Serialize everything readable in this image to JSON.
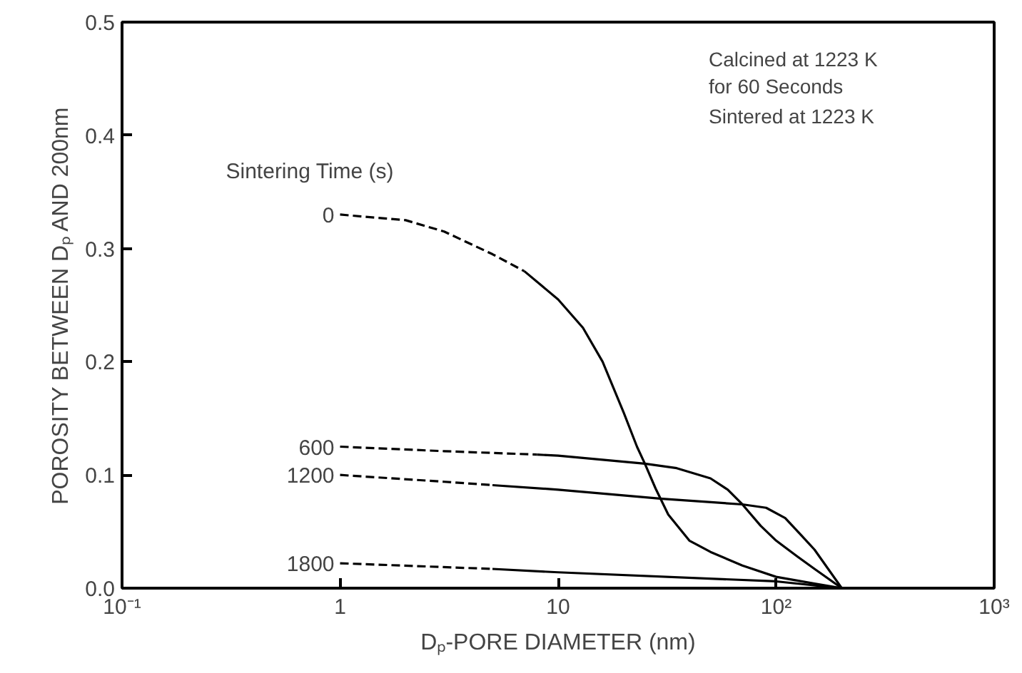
{
  "chart_data": {
    "type": "line",
    "xlabel": "Dₚ-PORE DIAMETER (nm)",
    "ylabel": "POROSITY BETWEEN Dₚ AND 200nm",
    "legend_title": "Sintering Time (s)",
    "annotations": [
      "Calcined at 1223 K\nfor 60 Seconds",
      "Sintered at 1223 K"
    ],
    "log": "x",
    "xlim": [
      0.1,
      1000
    ],
    "xticks": [
      {
        "value": 0.1,
        "label": "10⁻¹"
      },
      1,
      10,
      {
        "value": 100,
        "label": "10²"
      },
      {
        "value": 1000,
        "label": "10³"
      }
    ],
    "ylim": [
      0,
      0.5
    ],
    "yticks": [
      {
        "value": 0,
        "label": "0.0"
      },
      0.1,
      0.2,
      0.3,
      0.4,
      0.5
    ],
    "grid": false,
    "series": [
      {
        "name": "0",
        "color": "#000000",
        "line_style": "dashed",
        "x": [
          1,
          2,
          3,
          5,
          7
        ],
        "values": [
          0.33,
          0.325,
          0.315,
          0.295,
          0.28
        ]
      },
      {
        "color": "#000000",
        "line_style": "solid",
        "x": [
          7,
          10,
          13,
          16,
          20,
          23,
          25,
          28,
          32,
          40,
          50,
          70,
          100,
          150,
          200
        ],
        "values": [
          0.28,
          0.255,
          0.23,
          0.2,
          0.155,
          0.125,
          0.11,
          0.088,
          0.065,
          0.042,
          0.032,
          0.02,
          0.01,
          0.004,
          0
        ]
      },
      {
        "name": "600",
        "color": "#000000",
        "line_style": "dashed",
        "x": [
          1,
          3,
          8
        ],
        "values": [
          0.125,
          0.121,
          0.118
        ]
      },
      {
        "color": "#000000",
        "line_style": "solid",
        "x": [
          8,
          10,
          25,
          35,
          50,
          60,
          70,
          85,
          100,
          125,
          150,
          200
        ],
        "values": [
          0.118,
          0.117,
          0.11,
          0.106,
          0.097,
          0.087,
          0.074,
          0.055,
          0.042,
          0.028,
          0.017,
          0
        ]
      },
      {
        "name": "1200",
        "color": "#000000",
        "line_style": "dashed",
        "x": [
          1,
          3,
          5
        ],
        "values": [
          0.1,
          0.094,
          0.091
        ]
      },
      {
        "color": "#000000",
        "line_style": "solid",
        "x": [
          5,
          10,
          30,
          70,
          90,
          110,
          130,
          150,
          200
        ],
        "values": [
          0.091,
          0.087,
          0.079,
          0.074,
          0.071,
          0.062,
          0.047,
          0.034,
          0
        ]
      },
      {
        "name": "1800",
        "color": "#000000",
        "line_style": "dashed",
        "x": [
          1,
          5
        ],
        "values": [
          0.022,
          0.017
        ]
      },
      {
        "color": "#000000",
        "line_style": "solid",
        "x": [
          5,
          10,
          100,
          200
        ],
        "values": [
          0.017,
          0.014,
          0.006,
          0
        ]
      }
    ]
  }
}
